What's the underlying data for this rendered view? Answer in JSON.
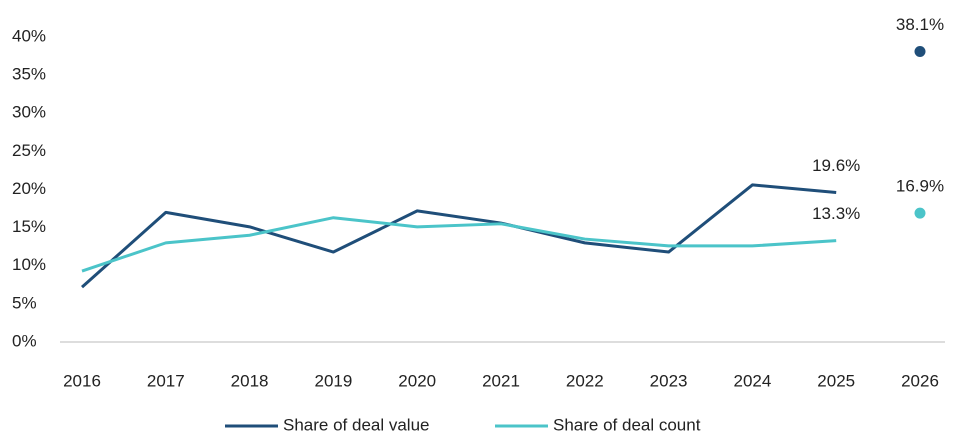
{
  "chart_data": {
    "type": "line",
    "categories": [
      "2016",
      "2017",
      "2018",
      "2019",
      "2020",
      "2021",
      "2022",
      "2023",
      "2024",
      "2025",
      "2026"
    ],
    "series": [
      {
        "name": "Share of deal value",
        "color": "#1f4e79",
        "values": [
          7.2,
          17.0,
          15.1,
          11.8,
          17.2,
          15.6,
          13.0,
          11.8,
          20.6,
          19.6,
          null
        ],
        "value_labels": [
          null,
          null,
          null,
          null,
          null,
          null,
          null,
          null,
          null,
          "19.6%",
          null
        ],
        "projected_values": [
          null,
          null,
          null,
          null,
          null,
          null,
          null,
          null,
          null,
          null,
          38.1
        ],
        "projected_value_labels": [
          null,
          null,
          null,
          null,
          null,
          null,
          null,
          null,
          null,
          null,
          "38.1%"
        ]
      },
      {
        "name": "Share of deal count",
        "color": "#4bc4c9",
        "values": [
          9.3,
          13.0,
          14.0,
          16.3,
          15.1,
          15.5,
          13.5,
          12.6,
          12.6,
          13.3,
          null
        ],
        "value_labels": [
          null,
          null,
          null,
          null,
          null,
          null,
          null,
          null,
          null,
          "13.3%",
          null
        ],
        "projected_values": [
          null,
          null,
          null,
          null,
          null,
          null,
          null,
          null,
          null,
          null,
          16.9
        ],
        "projected_value_labels": [
          null,
          null,
          null,
          null,
          null,
          null,
          null,
          null,
          null,
          null,
          "16.9%"
        ]
      }
    ],
    "ylim": [
      0,
      40
    ],
    "yticks": [
      {
        "value": 0,
        "label": "0%"
      },
      {
        "value": 5,
        "label": "5%"
      },
      {
        "value": 10,
        "label": "10%"
      },
      {
        "value": 15,
        "label": "15%"
      },
      {
        "value": 20,
        "label": "20%"
      },
      {
        "value": 25,
        "label": "25%"
      },
      {
        "value": 30,
        "label": "30%"
      },
      {
        "value": 35,
        "label": "35%"
      },
      {
        "value": 40,
        "label": "40%"
      }
    ],
    "grid": false,
    "legend": "bottom"
  }
}
